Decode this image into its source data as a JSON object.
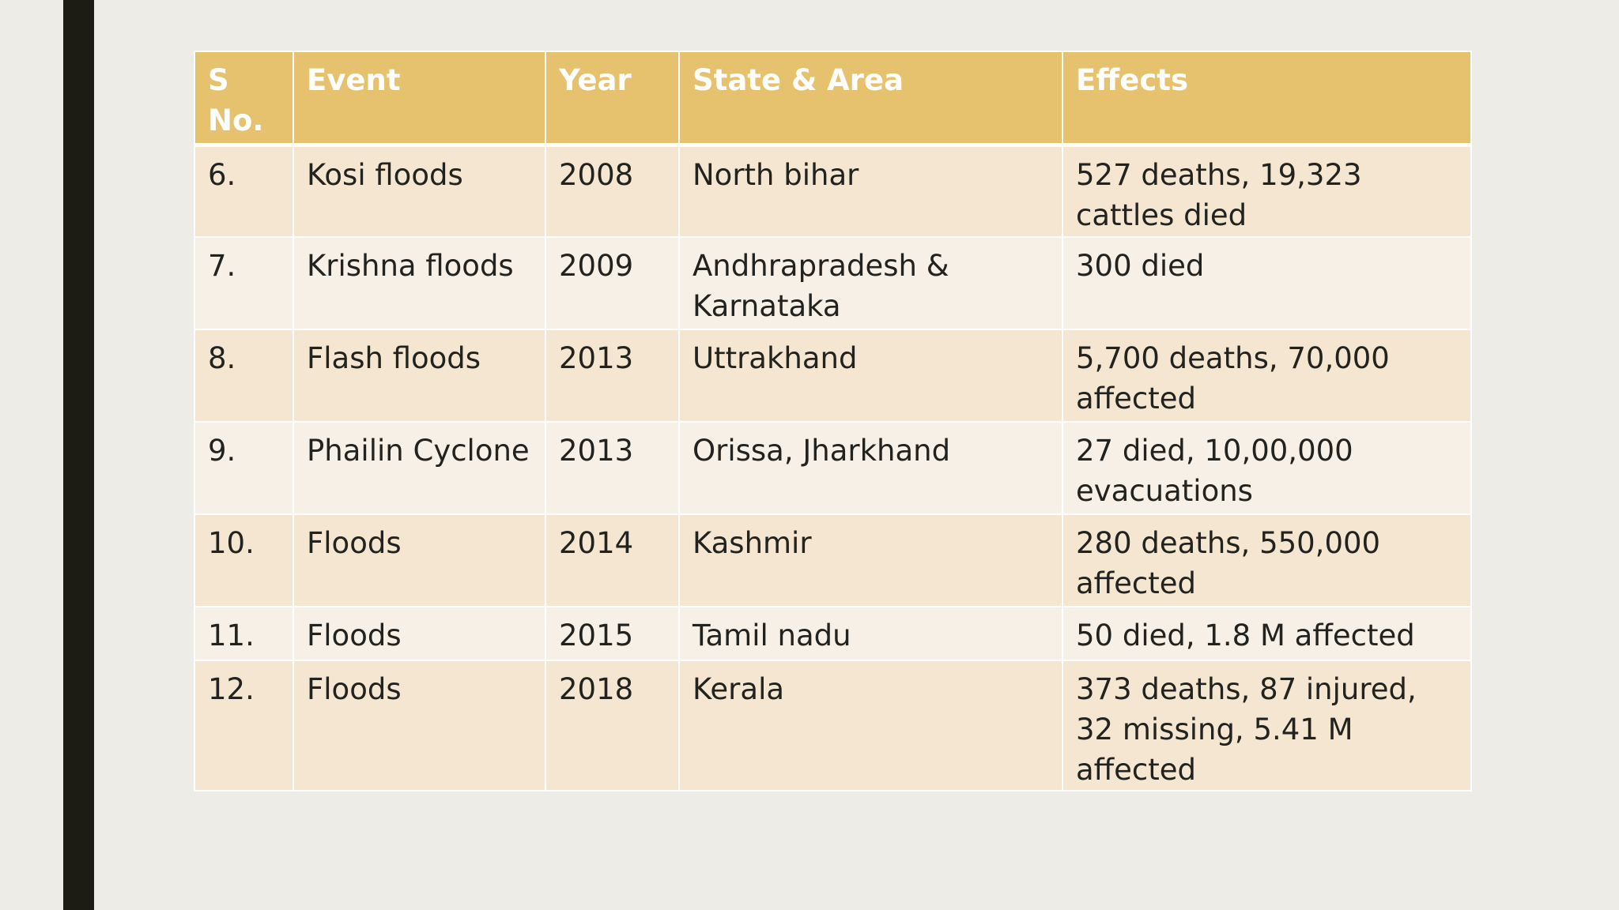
{
  "table": {
    "headers": [
      "S No.",
      "Event",
      "Year",
      "State & Area",
      "Effects"
    ],
    "rows": [
      [
        "6.",
        "Kosi floods",
        "2008",
        "North bihar",
        "527 deaths, 19,323 cattles died"
      ],
      [
        "7.",
        "Krishna floods",
        "2009",
        "Andhrapradesh & Karnataka",
        "300 died"
      ],
      [
        "8.",
        "Flash floods",
        "2013",
        "Uttrakhand",
        "5,700 deaths, 70,000 affected"
      ],
      [
        "9.",
        "Phailin Cyclone",
        "2013",
        "Orissa, Jharkhand",
        "27 died, 10,00,000 evacuations"
      ],
      [
        "10.",
        "Floods",
        "2014",
        "Kashmir",
        "280 deaths, 550,000 affected"
      ],
      [
        "11.",
        "Floods",
        "2015",
        "Tamil nadu",
        "50 died, 1.8 M affected"
      ],
      [
        "12.",
        "Floods",
        "2018",
        "Kerala",
        "373 deaths, 87 injured, 32 missing, 5.41 M affected"
      ]
    ]
  },
  "colors": {
    "header": "#e6c26f",
    "row_odd": "#f5e6d1",
    "row_even": "#f7f0e7",
    "left_bar": "#1d1c14",
    "background": "#eeece6"
  }
}
